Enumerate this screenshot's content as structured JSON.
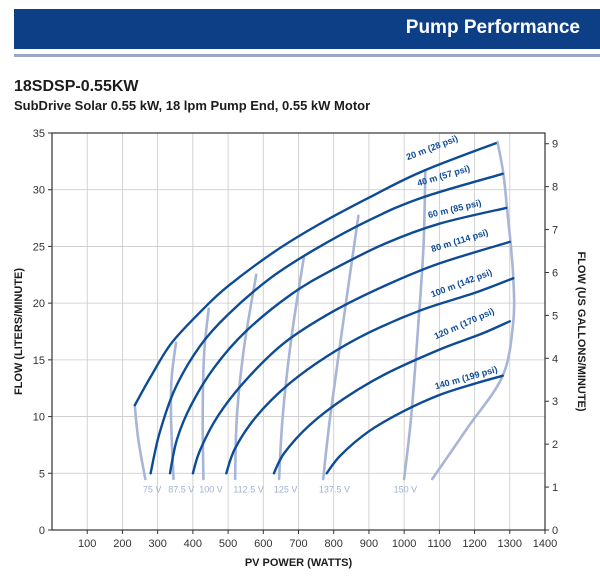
{
  "header": {
    "title": "Pump Performance"
  },
  "model": "18SDSP-0.55KW",
  "subtitle": "SubDrive Solar 0.55 kW, 18 lpm Pump End, 0.55 kW Motor",
  "colors": {
    "banner": "#0d3f87",
    "head_curve": "#0d4b95",
    "voltage_curve": "#a7b5d6",
    "grid": "#c8c8c8"
  },
  "chart_data": {
    "type": "line",
    "xlabel": "PV POWER (WATTS)",
    "ylabel": "FLOW (LITERS/MINUTE)",
    "y2label": "FLOW (US GALLONS/MINUTE)",
    "xlim": [
      0,
      1400
    ],
    "ylim": [
      0,
      35
    ],
    "y2lim": [
      0,
      9.25
    ],
    "x_ticks": [
      "100",
      "200",
      "300",
      "400",
      "500",
      "600",
      "700",
      "800",
      "900",
      "1000",
      "1100",
      "1200",
      "1300",
      "1400"
    ],
    "x_tick_values": [
      100,
      200,
      300,
      400,
      500,
      600,
      700,
      800,
      900,
      1000,
      1100,
      1200,
      1300,
      1400
    ],
    "y_ticks": [
      "0",
      "5",
      "10",
      "15",
      "20",
      "25",
      "30",
      "35"
    ],
    "y_tick_values": [
      0,
      5,
      10,
      15,
      20,
      25,
      30,
      35
    ],
    "y2_ticks": [
      "0",
      "1",
      "2",
      "3",
      "4",
      "5",
      "6",
      "7",
      "8",
      "9"
    ],
    "y2_tick_values": [
      0,
      1,
      2,
      3,
      4,
      5,
      6,
      7,
      8,
      9
    ],
    "grid": true,
    "head_series": [
      {
        "name": "20 m (28 psi)",
        "points": [
          [
            235,
            11
          ],
          [
            280,
            13.5
          ],
          [
            340,
            16.5
          ],
          [
            430,
            19.5
          ],
          [
            500,
            21.5
          ],
          [
            630,
            24.5
          ],
          [
            750,
            26.8
          ],
          [
            900,
            29.3
          ],
          [
            1050,
            31.6
          ],
          [
            1260,
            34.1
          ]
        ],
        "label_at": [
          1010,
          32.6
        ]
      },
      {
        "name": "40 m (57 psi)",
        "points": [
          [
            280,
            5
          ],
          [
            305,
            8.5
          ],
          [
            350,
            12.5
          ],
          [
            420,
            16.2
          ],
          [
            500,
            19
          ],
          [
            620,
            22.2
          ],
          [
            750,
            24.8
          ],
          [
            900,
            27.3
          ],
          [
            1050,
            29.3
          ],
          [
            1280,
            31.4
          ]
        ],
        "label_at": [
          1040,
          30.3
        ]
      },
      {
        "name": "60 m (85 psi)",
        "points": [
          [
            335,
            5
          ],
          [
            355,
            8
          ],
          [
            395,
            11
          ],
          [
            460,
            14.3
          ],
          [
            550,
            17.5
          ],
          [
            680,
            20.8
          ],
          [
            800,
            23
          ],
          [
            950,
            25.3
          ],
          [
            1100,
            27
          ],
          [
            1290,
            28.4
          ]
        ],
        "label_at": [
          1070,
          27.5
        ]
      },
      {
        "name": "80 m (114 psi)",
        "points": [
          [
            400,
            5
          ],
          [
            420,
            7
          ],
          [
            470,
            10
          ],
          [
            550,
            13.2
          ],
          [
            660,
            16.5
          ],
          [
            800,
            19.3
          ],
          [
            950,
            21.6
          ],
          [
            1100,
            23.5
          ],
          [
            1300,
            25.4
          ]
        ],
        "label_at": [
          1080,
          24.5
        ]
      },
      {
        "name": "100 m (142 psi)",
        "points": [
          [
            495,
            5
          ],
          [
            520,
            7.2
          ],
          [
            580,
            10
          ],
          [
            670,
            12.8
          ],
          [
            780,
            15.3
          ],
          [
            900,
            17.4
          ],
          [
            1050,
            19.4
          ],
          [
            1200,
            20.9
          ],
          [
            1310,
            22.2
          ]
        ],
        "label_at": [
          1080,
          20.5
        ]
      },
      {
        "name": "120 m (170 psi)",
        "points": [
          [
            630,
            5
          ],
          [
            660,
            6.8
          ],
          [
            730,
            9.2
          ],
          [
            830,
            11.6
          ],
          [
            950,
            13.8
          ],
          [
            1100,
            15.9
          ],
          [
            1220,
            17.3
          ],
          [
            1300,
            18.4
          ]
        ],
        "label_at": [
          1090,
          16.8
        ]
      },
      {
        "name": "140 m (199 psi)",
        "points": [
          [
            780,
            5
          ],
          [
            820,
            6.6
          ],
          [
            900,
            8.7
          ],
          [
            1000,
            10.5
          ],
          [
            1100,
            11.9
          ],
          [
            1200,
            12.9
          ],
          [
            1280,
            13.6
          ]
        ],
        "label_at": [
          1090,
          12.4
        ]
      }
    ],
    "voltage_series": [
      {
        "name": "75 V",
        "points": [
          [
            265,
            4.5
          ],
          [
            245,
            8
          ],
          [
            235,
            11
          ]
        ],
        "label_at": [
          258,
          3.3
        ]
      },
      {
        "name": "87.5 V",
        "points": [
          [
            345,
            4.5
          ],
          [
            338,
            10
          ],
          [
            340,
            13.5
          ],
          [
            352,
            16.5
          ]
        ],
        "label_at": [
          330,
          3.3
        ]
      },
      {
        "name": "100 V",
        "points": [
          [
            430,
            4.5
          ],
          [
            428,
            10
          ],
          [
            432,
            15.5
          ],
          [
            445,
            19.5
          ]
        ],
        "label_at": [
          418,
          3.3
        ]
      },
      {
        "name": "112.5 V",
        "points": [
          [
            520,
            4.5
          ],
          [
            525,
            10
          ],
          [
            545,
            16
          ],
          [
            580,
            22.5
          ]
        ],
        "label_at": [
          515,
          3.3
        ]
      },
      {
        "name": "125 V",
        "points": [
          [
            645,
            4.5
          ],
          [
            655,
            10
          ],
          [
            680,
            17
          ],
          [
            715,
            24
          ]
        ],
        "label_at": [
          630,
          3.3
        ]
      },
      {
        "name": "137.5 V",
        "points": [
          [
            770,
            4.5
          ],
          [
            790,
            10
          ],
          [
            830,
            19
          ],
          [
            870,
            27.7
          ]
        ],
        "label_at": [
          758,
          3.3
        ]
      },
      {
        "name": "150 V",
        "points": [
          [
            1000,
            4.5
          ],
          [
            1020,
            10
          ],
          [
            1040,
            18
          ],
          [
            1055,
            25
          ],
          [
            1060,
            31.6
          ]
        ],
        "label_at": [
          970,
          3.3
        ]
      },
      {
        "name": "",
        "points": [
          [
            1080,
            4.5
          ],
          [
            1180,
            9
          ],
          [
            1280,
            13.6
          ],
          [
            1310,
            18.4
          ],
          [
            1310,
            22.2
          ],
          [
            1302,
            25.4
          ],
          [
            1292,
            28.4
          ],
          [
            1282,
            31.4
          ],
          [
            1265,
            34.2
          ]
        ]
      }
    ]
  }
}
